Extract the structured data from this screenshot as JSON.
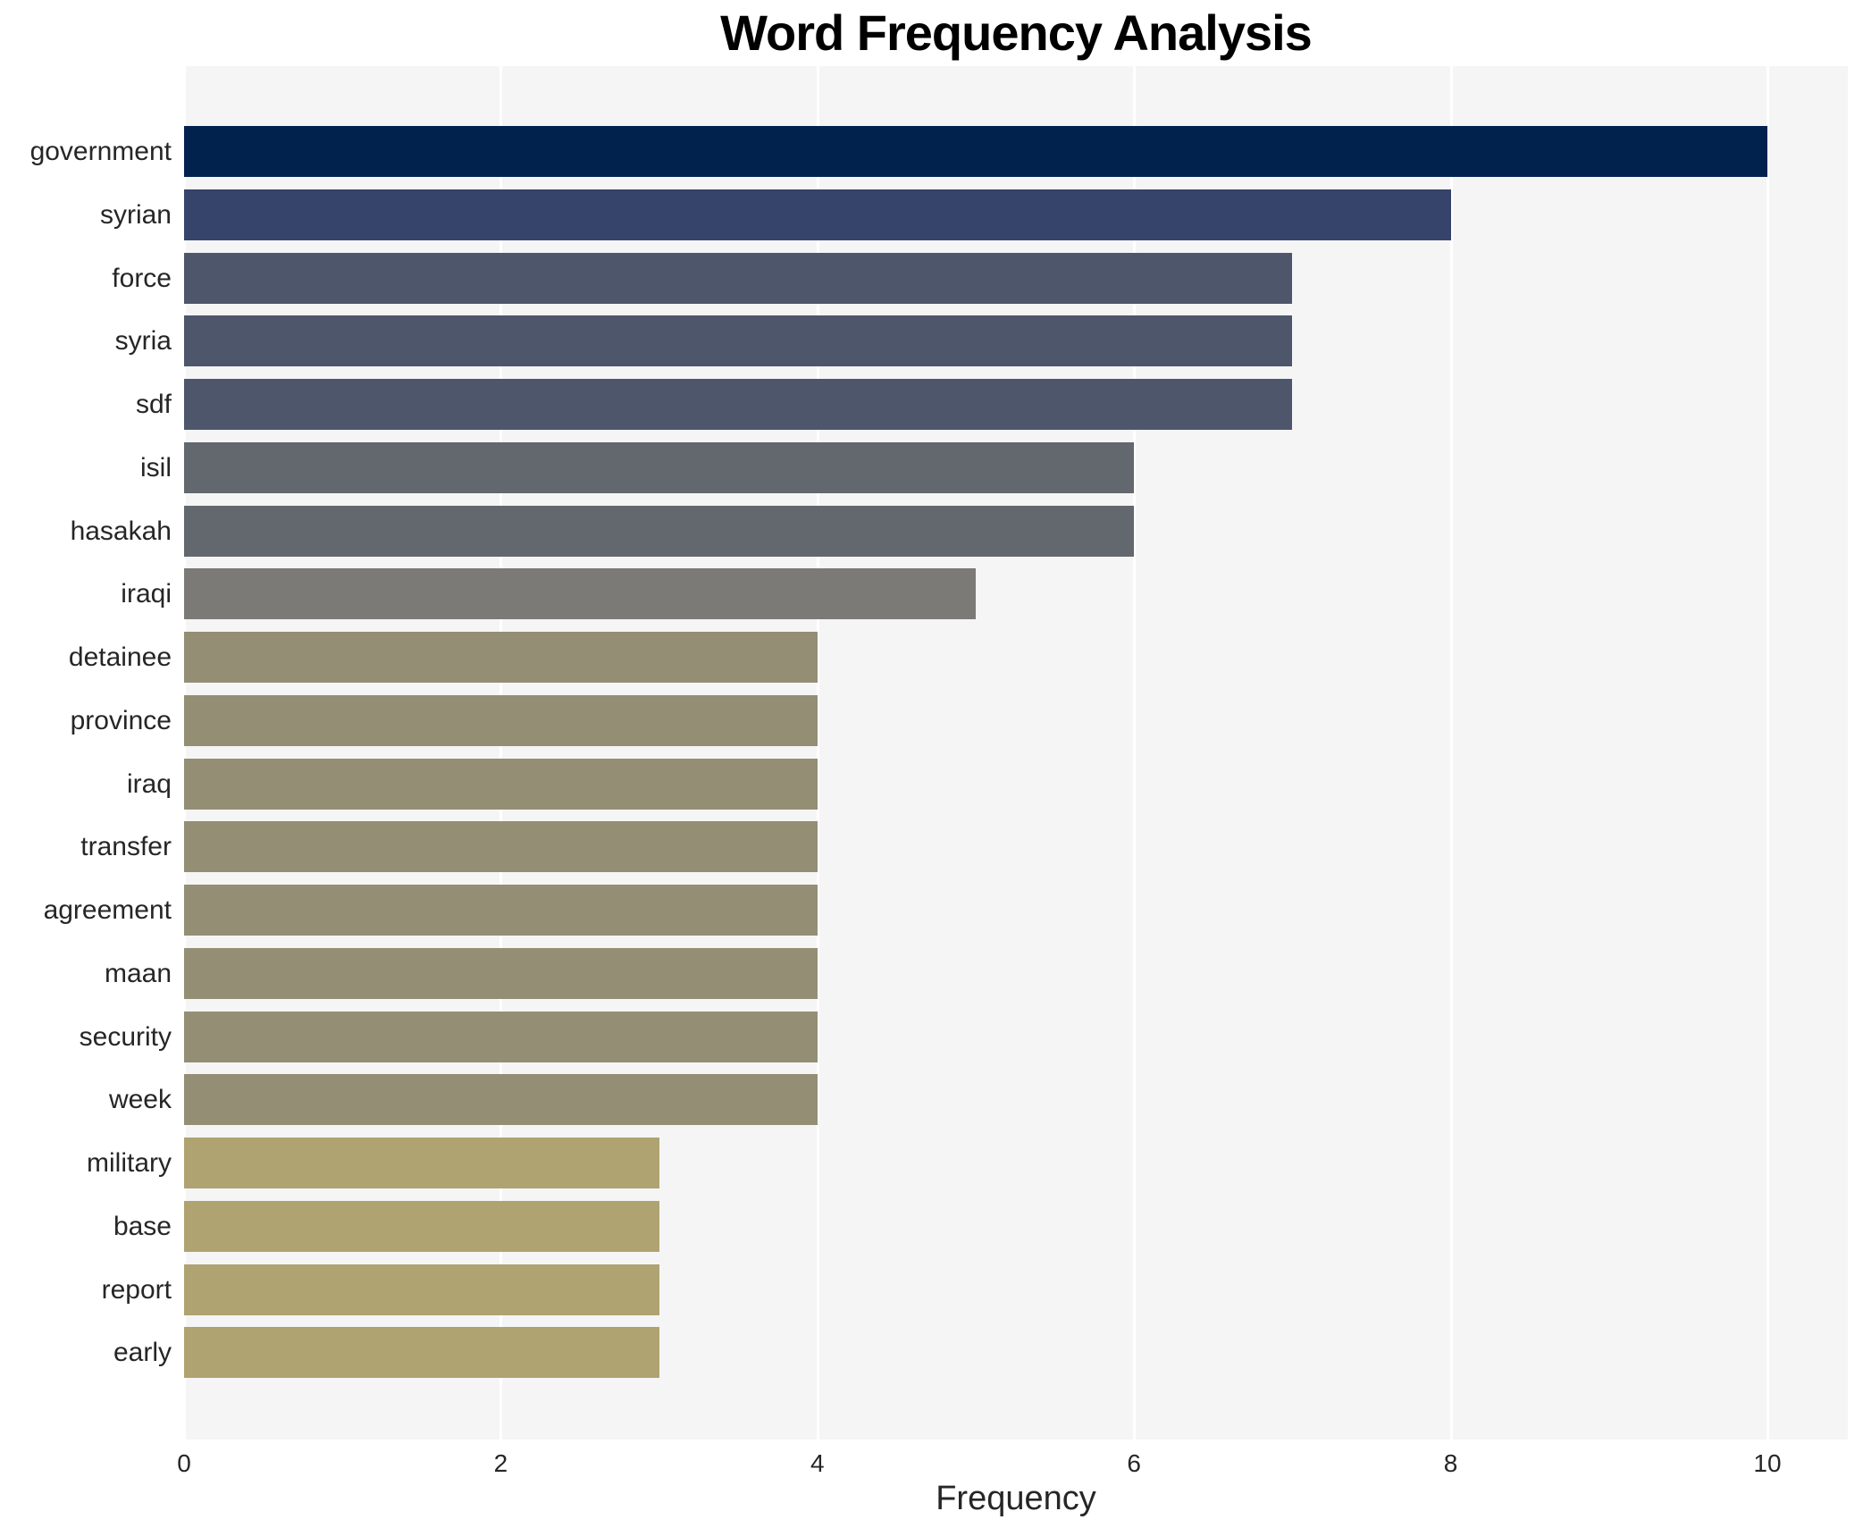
{
  "chart_data": {
    "type": "bar",
    "orientation": "horizontal",
    "title": "Word Frequency Analysis",
    "xlabel": "Frequency",
    "ylabel": "",
    "categories": [
      "government",
      "syrian",
      "force",
      "syria",
      "sdf",
      "isil",
      "hasakah",
      "iraqi",
      "detainee",
      "province",
      "iraq",
      "transfer",
      "agreement",
      "maan",
      "security",
      "week",
      "military",
      "base",
      "report",
      "early"
    ],
    "values": [
      10,
      8,
      7,
      7,
      7,
      6,
      6,
      5,
      4,
      4,
      4,
      4,
      4,
      4,
      4,
      4,
      3,
      3,
      3,
      3
    ],
    "bar_colors": [
      "#02224e",
      "#36446b",
      "#4e566b",
      "#4e566b",
      "#4e566b",
      "#63676e",
      "#63676e",
      "#7b7a76",
      "#948e75",
      "#948e75",
      "#948e75",
      "#948e75",
      "#948e75",
      "#948e75",
      "#948e75",
      "#948e75",
      "#aea371",
      "#aea371",
      "#aea371",
      "#aea371"
    ],
    "xticks": [
      0,
      2,
      4,
      6,
      8,
      10
    ],
    "xlim": [
      0,
      10.5
    ],
    "grid": true,
    "legend": "none",
    "colors": {
      "figure_background": "#ffffff",
      "plot_background": "#f5f5f6",
      "gridline": "#ffffff",
      "text": "#262626",
      "title_text": "#000000"
    }
  }
}
